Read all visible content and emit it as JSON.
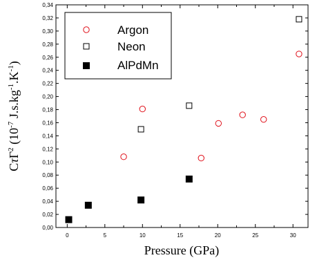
{
  "chart_data": {
    "type": "scatter",
    "x_ticks": [
      "0",
      "5",
      "10",
      "15",
      "20",
      "25",
      "30"
    ],
    "y_ticks": [
      "0,00",
      "0,02",
      "0,04",
      "0,06",
      "0,08",
      "0,10",
      "0,12",
      "0,14",
      "0,16",
      "0,18",
      "0,20",
      "0,22",
      "0,24",
      "0,26",
      "0,28",
      "0,30",
      "0,32",
      "0,34"
    ],
    "xlabel": "Pressure (GPa)",
    "ylabel": {
      "prefix": "C",
      "tau": "τ",
      "gamma": "Γ",
      "sup2": "2",
      "open": " (10",
      "sup_exp": "-7",
      "units": " J.s.kg",
      "sup_kg": "-1",
      "kelvin": ".K",
      "sup_k": "-1",
      "close": ")"
    },
    "xlim": [
      -1.5,
      32
    ],
    "ylim": [
      0,
      0.34
    ],
    "legend_position": "top-left",
    "series": [
      {
        "name": "Argon",
        "marker": "open-circle",
        "color": "#e0101a",
        "points": [
          [
            7.5,
            0.108
          ],
          [
            10.0,
            0.181
          ],
          [
            17.8,
            0.106
          ],
          [
            20.1,
            0.159
          ],
          [
            23.3,
            0.172
          ],
          [
            26.1,
            0.165
          ],
          [
            30.8,
            0.265
          ]
        ]
      },
      {
        "name": "Neon",
        "marker": "open-square",
        "color": "#000000",
        "points": [
          [
            9.8,
            0.15
          ],
          [
            16.2,
            0.186
          ],
          [
            30.8,
            0.318
          ]
        ]
      },
      {
        "name": "AlPdMn",
        "marker": "filled-square",
        "color": "#000000",
        "points": [
          [
            0.2,
            0.012
          ],
          [
            2.8,
            0.034
          ],
          [
            9.8,
            0.042
          ],
          [
            16.2,
            0.074
          ]
        ]
      }
    ]
  }
}
